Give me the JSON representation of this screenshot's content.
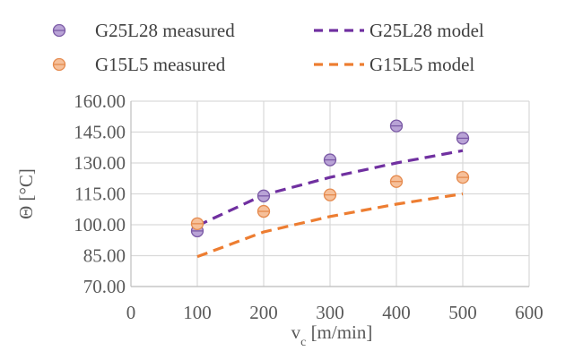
{
  "chart_data": {
    "type": "scatter",
    "xlabel": "v",
    "xlabel_sub": "c",
    "xlabel_unit": " [m/min]",
    "ylabel": "Θ [°C]",
    "xlim": [
      0,
      600
    ],
    "ylim": [
      70,
      160
    ],
    "x_ticks": [
      0,
      100,
      200,
      300,
      400,
      500,
      600
    ],
    "y_ticks": [
      70,
      85,
      100,
      115,
      130,
      145,
      160
    ],
    "y_tick_labels": [
      "70.00",
      "85.00",
      "100.00",
      "115.00",
      "130.00",
      "145.00",
      "160.00"
    ],
    "grid": true,
    "legend_position": "top",
    "series": [
      {
        "name": "G25L28 measured",
        "kind": "markers",
        "color": "#b9a3d6",
        "edge_color": "#7b5aa6",
        "x": [
          100,
          200,
          300,
          400,
          500
        ],
        "y": [
          97,
          114,
          131.5,
          148,
          142
        ]
      },
      {
        "name": "G15L5 measured",
        "kind": "markers",
        "color": "#f6c09a",
        "edge_color": "#e58a4e",
        "x": [
          100,
          200,
          300,
          400,
          500
        ],
        "y": [
          100.5,
          106.5,
          114.5,
          121,
          123
        ]
      },
      {
        "name": "G25L28 model",
        "kind": "dashed-line",
        "color": "#7030a0",
        "x": [
          100,
          200,
          300,
          400,
          500
        ],
        "y": [
          99.5,
          114.5,
          123,
          130,
          136
        ]
      },
      {
        "name": "G15L5 model",
        "kind": "dashed-line",
        "color": "#ed7d31",
        "x": [
          100,
          200,
          300,
          400,
          500
        ],
        "y": [
          84.5,
          96.5,
          104,
          110,
          115
        ]
      }
    ]
  }
}
